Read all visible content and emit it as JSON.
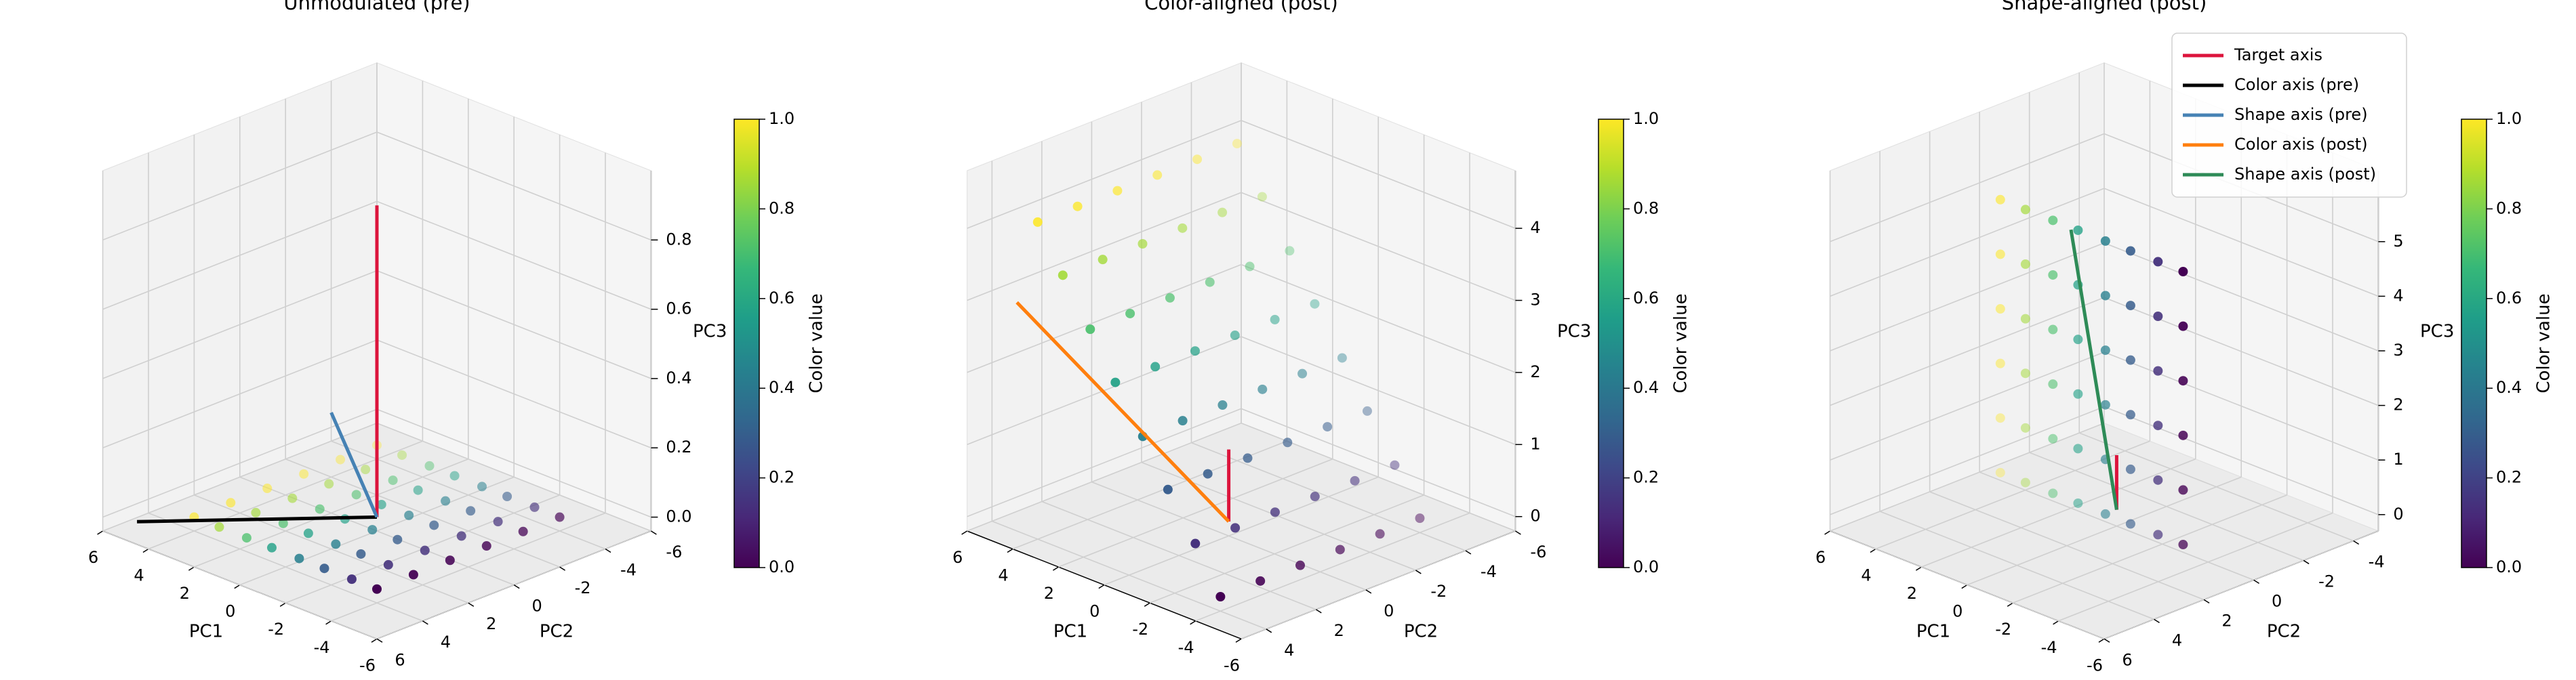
{
  "chart_data": [
    {
      "type": "scatter3d",
      "title": "Unmodulated (pre)",
      "xlabel": "PC1",
      "ylabel": "PC2",
      "zlabel": "PC3",
      "grid": true,
      "xlim": [
        -6,
        6
      ],
      "ylim": [
        -6,
        6
      ],
      "zlim": [
        -0.04,
        1.0
      ],
      "xticks": [
        -6,
        -4,
        -2,
        0,
        2,
        4,
        6
      ],
      "yticks": [
        -6,
        -4,
        -2,
        0,
        2,
        4,
        6
      ],
      "zticks": [
        {
          "value": 0,
          "label": "0.0"
        },
        0.2,
        0.4,
        0.6,
        0.8
      ],
      "colorbar": {
        "label": "Color value",
        "colormap": "viridis",
        "lim": [
          0,
          1
        ],
        "ticks": [
          {
            "value": 0,
            "label": "0.0"
          },
          0.2,
          0.4,
          0.6,
          0.8,
          {
            "value": 1,
            "label": "1.0"
          }
        ]
      },
      "points": {
        "x": [
          4,
          4,
          4,
          4,
          4,
          4,
          2.9,
          2.9,
          2.9,
          2.9,
          2.9,
          2.9,
          1.7,
          1.7,
          1.7,
          1.7,
          1.7,
          1.7,
          0.6,
          0.6,
          0.6,
          0.6,
          0.6,
          0.6,
          -0.6,
          -0.6,
          -0.6,
          -0.6,
          -0.6,
          -0.6,
          -1.7,
          -1.7,
          -1.7,
          -1.7,
          -1.7,
          -1.7,
          -2.9,
          -2.9,
          -2.9,
          -2.9,
          -2.9,
          -2.9,
          -4,
          -4,
          -4,
          -4,
          -4,
          -4
        ],
        "y": [
          -4,
          -2.4,
          -0.8,
          0.8,
          2.4,
          4,
          -4,
          -2.4,
          -0.8,
          0.8,
          2.4,
          4,
          -4,
          -2.4,
          -0.8,
          0.8,
          2.4,
          4,
          -4,
          -2.4,
          -0.8,
          0.8,
          2.4,
          4,
          -4,
          -2.4,
          -0.8,
          0.8,
          2.4,
          4,
          -4,
          -2.4,
          -0.8,
          0.8,
          2.4,
          4,
          -4,
          -2.4,
          -0.8,
          0.8,
          2.4,
          4,
          -4,
          -2.4,
          -0.8,
          0.8,
          2.4,
          4
        ],
        "z": [
          0,
          0,
          0,
          0,
          0,
          0,
          0,
          0,
          0,
          0,
          0,
          0,
          0,
          0,
          0,
          0,
          0,
          0,
          0,
          0,
          0,
          0,
          0,
          0,
          0,
          0,
          0,
          0,
          0,
          0,
          0,
          0,
          0,
          0,
          0,
          0,
          0,
          0,
          0,
          0,
          0,
          0,
          0,
          0,
          0,
          0,
          0,
          0
        ],
        "c": [
          1,
          1,
          1,
          1,
          1,
          1,
          0.86,
          0.86,
          0.86,
          0.86,
          0.86,
          0.86,
          0.71,
          0.71,
          0.71,
          0.71,
          0.71,
          0.71,
          0.57,
          0.57,
          0.57,
          0.57,
          0.57,
          0.57,
          0.43,
          0.43,
          0.43,
          0.43,
          0.43,
          0.43,
          0.29,
          0.29,
          0.29,
          0.29,
          0.29,
          0.29,
          0.14,
          0.14,
          0.14,
          0.14,
          0.14,
          0.14,
          0,
          0,
          0,
          0,
          0,
          0
        ]
      },
      "lines": [
        {
          "color": "#dc143c",
          "x": [
            0,
            0
          ],
          "y": [
            0,
            0
          ],
          "z": [
            0,
            0.9
          ]
        },
        {
          "color": "#000000",
          "x": [
            0,
            5
          ],
          "y": [
            0,
            5.5
          ],
          "z": [
            0,
            0
          ]
        },
        {
          "color": "#4682b4",
          "x": [
            0,
            2
          ],
          "y": [
            0,
            0
          ],
          "z": [
            0,
            0.25
          ]
        }
      ]
    },
    {
      "type": "scatter3d",
      "title": "Color-aligned (post)",
      "xlabel": "PC1",
      "ylabel": "PC2",
      "zlabel": "PC3",
      "grid": true,
      "xlim": [
        -6,
        6
      ],
      "ylim": [
        -6,
        5
      ],
      "zlim": [
        -0.2,
        4.8
      ],
      "xticks": [
        -6,
        -4,
        -2,
        0,
        2,
        4,
        6
      ],
      "yticks": [
        -6,
        -4,
        -2,
        0,
        2,
        4
      ],
      "zticks": [
        0,
        1,
        2,
        3,
        4
      ],
      "colorbar": {
        "label": "Color value",
        "colormap": "viridis",
        "lim": [
          0,
          1
        ],
        "ticks": [
          {
            "value": 0,
            "label": "0.0"
          },
          0.2,
          0.4,
          0.6,
          0.8,
          {
            "value": 1,
            "label": "1.0"
          }
        ]
      },
      "points": {
        "x": [
          4,
          4,
          4,
          4,
          4,
          4,
          2.9,
          2.9,
          2.9,
          2.9,
          2.9,
          2.9,
          1.7,
          1.7,
          1.7,
          1.7,
          1.7,
          1.7,
          0.6,
          0.6,
          0.6,
          0.6,
          0.6,
          0.6,
          -0.6,
          -0.6,
          -0.6,
          -0.6,
          -0.6,
          -0.6,
          -1.7,
          -1.7,
          -1.7,
          -1.7,
          -1.7,
          -1.7,
          -2.9,
          -2.9,
          -2.9,
          -2.9,
          -2.9,
          -2.9,
          -4,
          -4,
          -4,
          -4,
          -4,
          -4
        ],
        "y": [
          -4,
          -2.4,
          -0.8,
          0.8,
          2.4,
          4,
          -4,
          -2.4,
          -0.8,
          0.8,
          2.4,
          4,
          -4,
          -2.4,
          -0.8,
          0.8,
          2.4,
          4,
          -4,
          -2.4,
          -0.8,
          0.8,
          2.4,
          4,
          -4,
          -2.4,
          -0.8,
          0.8,
          2.4,
          4,
          -4,
          -2.4,
          -0.8,
          0.8,
          2.4,
          4,
          -4,
          -2.4,
          -0.8,
          0.8,
          2.4,
          4,
          -4,
          -2.4,
          -0.8,
          0.8,
          2.4,
          4
        ],
        "z": [
          4.2,
          4.2,
          4.2,
          4.2,
          4.2,
          4.2,
          3.6,
          3.6,
          3.6,
          3.6,
          3.6,
          3.6,
          3,
          3,
          3,
          3,
          3,
          3,
          2.4,
          2.4,
          2.4,
          2.4,
          2.4,
          2.4,
          1.8,
          1.8,
          1.8,
          1.8,
          1.8,
          1.8,
          1.2,
          1.2,
          1.2,
          1.2,
          1.2,
          1.2,
          0.6,
          0.6,
          0.6,
          0.6,
          0.6,
          0.6,
          0,
          0,
          0,
          0,
          0,
          0
        ],
        "c": [
          1,
          1,
          1,
          1,
          1,
          1,
          0.86,
          0.86,
          0.86,
          0.86,
          0.86,
          0.86,
          0.71,
          0.71,
          0.71,
          0.71,
          0.71,
          0.71,
          0.57,
          0.57,
          0.57,
          0.57,
          0.57,
          0.57,
          0.43,
          0.43,
          0.43,
          0.43,
          0.43,
          0.43,
          0.29,
          0.29,
          0.29,
          0.29,
          0.29,
          0.29,
          0.14,
          0.14,
          0.14,
          0.14,
          0.14,
          0.14,
          0,
          0,
          0,
          0,
          0,
          0
        ]
      },
      "lines": [
        {
          "color": "#dc143c",
          "x": [
            0,
            0
          ],
          "y": [
            0,
            0
          ],
          "z": [
            0,
            1
          ]
        },
        {
          "color": "#ff7f0e",
          "x": [
            0,
            6
          ],
          "y": [
            0,
            3
          ],
          "z": [
            0,
            2.7
          ]
        }
      ]
    },
    {
      "type": "scatter3d",
      "title": "Shape-aligned (post)",
      "xlabel": "PC1",
      "ylabel": "PC2",
      "zlabel": "PC3",
      "grid": true,
      "xlim": [
        -6,
        6
      ],
      "ylim": [
        -5,
        6
      ],
      "zlim": [
        -0.3,
        6.3
      ],
      "xticks": [
        -6,
        -4,
        -2,
        0,
        2,
        4,
        6
      ],
      "yticks": [
        -4,
        -2,
        0,
        2,
        4,
        6
      ],
      "zticks": [
        0,
        1,
        2,
        3,
        4,
        5
      ],
      "colorbar": {
        "label": "Color value",
        "colormap": "viridis",
        "lim": [
          0,
          1
        ],
        "ticks": [
          {
            "value": 0,
            "label": "0.0"
          },
          0.2,
          0.4,
          0.6,
          0.8,
          {
            "value": 1,
            "label": "1.0"
          }
        ]
      },
      "points": {
        "x": [
          4,
          4,
          4,
          4,
          4,
          4,
          2.9,
          2.9,
          2.9,
          2.9,
          2.9,
          2.9,
          1.7,
          1.7,
          1.7,
          1.7,
          1.7,
          1.7,
          0.6,
          0.6,
          0.6,
          0.6,
          0.6,
          0.6,
          -0.6,
          -0.6,
          -0.6,
          -0.6,
          -0.6,
          -0.6,
          -1.7,
          -1.7,
          -1.7,
          -1.7,
          -1.7,
          -1.7,
          -2.9,
          -2.9,
          -2.9,
          -2.9,
          -2.9,
          -2.9,
          -4,
          -4,
          -4,
          -4,
          -4,
          -4
        ],
        "y": [
          1,
          1,
          1,
          1,
          1,
          1,
          1,
          1,
          1,
          1,
          1,
          1,
          1,
          1,
          1,
          1,
          1,
          1,
          1,
          1,
          1,
          1,
          1,
          1,
          1,
          1,
          1,
          1,
          1,
          1,
          1,
          1,
          1,
          1,
          1,
          1,
          1,
          1,
          1,
          1,
          1,
          1,
          1,
          1,
          1,
          1,
          1,
          1
        ],
        "z": [
          0.2,
          1.2,
          2.2,
          3.2,
          4.2,
          5.2,
          0.2,
          1.2,
          2.2,
          3.2,
          4.2,
          5.2,
          0.2,
          1.2,
          2.2,
          3.2,
          4.2,
          5.2,
          0.2,
          1.2,
          2.2,
          3.2,
          4.2,
          5.2,
          0.2,
          1.2,
          2.2,
          3.2,
          4.2,
          5.2,
          0.2,
          1.2,
          2.2,
          3.2,
          4.2,
          5.2,
          0.2,
          1.2,
          2.2,
          3.2,
          4.2,
          5.2,
          0.2,
          1.2,
          2.2,
          3.2,
          4.2,
          5.2
        ],
        "c": [
          1,
          1,
          1,
          1,
          1,
          1,
          0.86,
          0.86,
          0.86,
          0.86,
          0.86,
          0.86,
          0.71,
          0.71,
          0.71,
          0.71,
          0.71,
          0.71,
          0.57,
          0.57,
          0.57,
          0.57,
          0.57,
          0.57,
          0.43,
          0.43,
          0.43,
          0.43,
          0.43,
          0.43,
          0.29,
          0.29,
          0.29,
          0.29,
          0.29,
          0.29,
          0.14,
          0.14,
          0.14,
          0.14,
          0.14,
          0.14,
          0,
          0,
          0,
          0,
          0,
          0
        ]
      },
      "lines": [
        {
          "color": "#dc143c",
          "x": [
            0,
            0
          ],
          "y": [
            0,
            0
          ],
          "z": [
            0,
            1
          ]
        },
        {
          "color": "#2e8b57",
          "x": [
            0,
            2
          ],
          "y": [
            0,
            0
          ],
          "z": [
            0,
            4.8
          ]
        }
      ],
      "legend": {
        "loc": "upper right",
        "entries": [
          {
            "name": "Target axis",
            "color": "#dc143c"
          },
          {
            "name": "Color axis (pre)",
            "color": "#000000"
          },
          {
            "name": "Shape axis (pre)",
            "color": "#4682b4"
          },
          {
            "name": "Color axis (post)",
            "color": "#ff7f0e"
          },
          {
            "name": "Shape axis (post)",
            "color": "#2e8b57"
          }
        ]
      }
    }
  ]
}
